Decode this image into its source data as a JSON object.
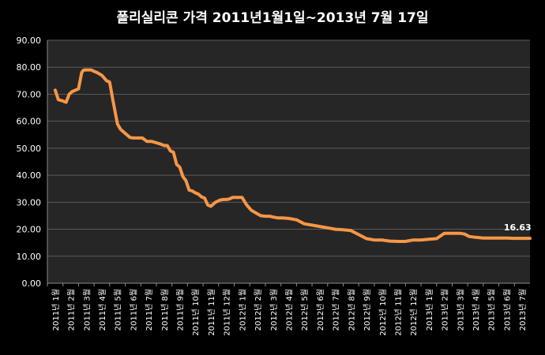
{
  "chart_data": {
    "type": "line",
    "title": "폴리실리콘 가격    2011년1월1일~2013년 7월 17일",
    "xlabel": "",
    "ylabel": "",
    "ylim": [
      0,
      90
    ],
    "yticks": [
      "0.00",
      "10.00",
      "20.00",
      "30.00",
      "40.00",
      "50.00",
      "60.00",
      "70.00",
      "80.00",
      "90.00"
    ],
    "grid": true,
    "legend": "none",
    "colors": {
      "background": "#000000",
      "plot_area": "#262626",
      "grid": "#5a5a5a",
      "line": "#f79646",
      "text": "#ffffff"
    },
    "categories": [
      "2011년 1월",
      "2011년 2월",
      "2011년 3월",
      "2011년 4월",
      "2011년 5월",
      "2011년 6월",
      "2011년 7월",
      "2011년 8월",
      "2011년 9월",
      "2011년 10월",
      "2011년 11월",
      "2011년 12월",
      "2012년 1월",
      "2012년 2월",
      "2012년 3월",
      "2012년 4월",
      "2012년 5월",
      "2012년 6월",
      "2012년 7월",
      "2012년 8월",
      "2012년 9월",
      "2012년 10월",
      "2012년 11월",
      "2012년 12월",
      "2013년 1월",
      "2013년 2월",
      "2013년 3월",
      "2013년 4월",
      "2013년 5월",
      "2013년 6월",
      "2013년 7월"
    ],
    "series": [
      {
        "name": "",
        "x": [
          0,
          0.2,
          0.5,
          0.7,
          0.9,
          1.1,
          1.3,
          1.5,
          1.7,
          1.8,
          1.9,
          2.1,
          2.3,
          2.5,
          2.7,
          3.0,
          3.3,
          3.5,
          3.7,
          3.9,
          4.0,
          4.2,
          4.4,
          4.6,
          4.8,
          5.0,
          5.3,
          5.6,
          5.9,
          6.2,
          6.5,
          6.8,
          7.0,
          7.2,
          7.4,
          7.6,
          7.8,
          8.0,
          8.2,
          8.4,
          8.6,
          8.8,
          9.0,
          9.2,
          9.4,
          9.6,
          9.8,
          10.0,
          10.3,
          10.6,
          10.8,
          11.0,
          11.2,
          11.4,
          11.6,
          11.8,
          12.0,
          12.3,
          12.6,
          12.9,
          13.2,
          13.5,
          13.8,
          14.0,
          14.3,
          14.6,
          15.0,
          15.5,
          16.0,
          16.5,
          17.0,
          17.5,
          18.0,
          18.5,
          19.0,
          19.5,
          20.0,
          20.5,
          21.0,
          21.2,
          21.5,
          22.0,
          22.5,
          23.0,
          23.5,
          24.0,
          24.5,
          25.0,
          25.5,
          26.0,
          26.3,
          26.6,
          27.0,
          27.5,
          28.0,
          28.5,
          29.0,
          29.5,
          30.0,
          30.5
        ],
        "values": [
          71.5,
          68,
          67.5,
          67,
          70,
          71,
          71.5,
          72,
          78,
          78.8,
          79,
          79,
          79,
          78.5,
          78,
          77,
          75,
          74.5,
          68,
          62,
          59,
          57,
          56,
          55,
          54,
          53.8,
          53.8,
          53.8,
          52.5,
          52.5,
          52,
          51.5,
          51,
          51,
          49,
          48.5,
          44,
          43,
          39.5,
          38,
          34.5,
          34.2,
          33.5,
          33,
          32,
          31.5,
          29,
          28.5,
          30,
          30.8,
          31,
          31,
          31.2,
          31.8,
          31.8,
          31.8,
          31.8,
          29,
          27,
          26,
          25,
          24.8,
          24.8,
          24.5,
          24.2,
          24.2,
          24,
          23.5,
          22,
          21.5,
          21,
          20.5,
          20,
          19.8,
          19.5,
          18,
          16.5,
          16,
          16,
          15.8,
          15.6,
          15.5,
          15.5,
          16,
          16,
          16.3,
          16.5,
          18.5,
          18.5,
          18.5,
          18.2,
          17.3,
          17,
          16.7,
          16.7,
          16.7,
          16.7,
          16.63,
          16.63,
          16.63
        ]
      }
    ],
    "annotations": [
      {
        "text": "16.63",
        "x": 29.7,
        "y": 16.63
      }
    ]
  }
}
